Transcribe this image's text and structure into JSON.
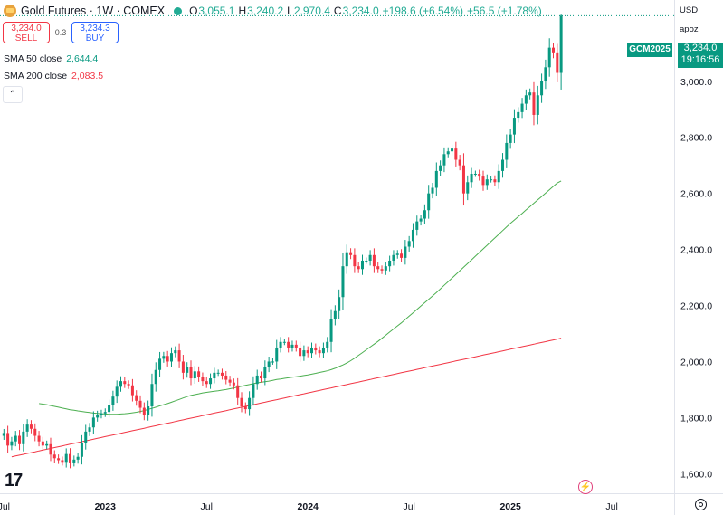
{
  "header": {
    "title": "Gold Futures · 1W · COMEX",
    "ohlc": [
      {
        "k": "O",
        "v": "3,055.1"
      },
      {
        "k": "H",
        "v": "3,240.2"
      },
      {
        "k": "L",
        "v": "2,970.4"
      },
      {
        "k": "C",
        "v": "3,234.0"
      }
    ],
    "change": "+198.6 (+6.54%)",
    "extra_change": "+56.5 (+1.78%)"
  },
  "trade": {
    "sell_price": "3,234.0",
    "sell_label": "SELL",
    "spread": "0.3",
    "buy_price": "3,234.3",
    "buy_label": "BUY"
  },
  "indicators": {
    "sma50_label": "SMA 50 close",
    "sma50_value": "2,644.4",
    "sma200_label": "SMA 200 close",
    "sma200_value": "2,083.5"
  },
  "right_panel": {
    "currency": "USD",
    "scale": "apoz",
    "symbol_badge": "GCM2025",
    "price_badge": "3,234.0",
    "countdown": "19:16:56"
  },
  "colors": {
    "up": "#089981",
    "down": "#f23645",
    "sma50": "#4caf50",
    "sma200": "#f23645",
    "last_price": "#089981"
  },
  "chart_data": {
    "type": "candlestick",
    "title": "Gold Futures · 1W · COMEX",
    "y_ticks": [
      1600,
      1800,
      2000,
      2200,
      2400,
      2600,
      2800,
      3000
    ],
    "y_tick_labels": [
      "1,600.0",
      "1,800.0",
      "2,000.0",
      "2,200.0",
      "2,400.0",
      "2,600.0",
      "2,800.0",
      "3,000.0"
    ],
    "ylim": [
      1530,
      3290
    ],
    "x_ticks": [
      {
        "label": "Jul",
        "week": 0
      },
      {
        "label": "2023",
        "week": 26
      },
      {
        "label": "Jul",
        "week": 52
      },
      {
        "label": "2024",
        "week": 78
      },
      {
        "label": "Jul",
        "week": 104
      },
      {
        "label": "2025",
        "week": 130
      },
      {
        "label": "Jul",
        "week": 156
      }
    ],
    "x_range_weeks": [
      -1,
      172
    ],
    "bold_x_labels": [
      "2023",
      "2024",
      "2025"
    ],
    "last_price": 3234.0,
    "closes": [
      1745,
      1700,
      1715,
      1735,
      1705,
      1750,
      1775,
      1760,
      1735,
      1715,
      1700,
      1705,
      1668,
      1655,
      1648,
      1642,
      1670,
      1640,
      1650,
      1660,
      1710,
      1750,
      1765,
      1800,
      1810,
      1815,
      1820,
      1845,
      1875,
      1910,
      1930,
      1920,
      1915,
      1880,
      1860,
      1835,
      1810,
      1840,
      1920,
      1970,
      2010,
      2020,
      2000,
      2030,
      2040,
      2000,
      1960,
      1980,
      1940,
      1965,
      1945,
      1930,
      1920,
      1940,
      1960,
      1960,
      1950,
      1935,
      1925,
      1915,
      1870,
      1840,
      1830,
      1870,
      1920,
      1950,
      1940,
      1980,
      2000,
      2000,
      2050,
      2070,
      2070,
      2050,
      2060,
      2050,
      2020,
      2040,
      2030,
      2050,
      2040,
      2030,
      2050,
      2070,
      2150,
      2180,
      2230,
      2340,
      2390,
      2380,
      2340,
      2330,
      2360,
      2360,
      2380,
      2340,
      2330,
      2325,
      2340,
      2360,
      2380,
      2385,
      2370,
      2410,
      2430,
      2470,
      2500,
      2510,
      2540,
      2600,
      2620,
      2680,
      2700,
      2740,
      2750,
      2760,
      2720,
      2700,
      2600,
      2640,
      2670,
      2670,
      2660,
      2630,
      2650,
      2650,
      2640,
      2680,
      2720,
      2780,
      2810,
      2870,
      2890,
      2920,
      2950,
      2960,
      2880,
      2950,
      3000,
      3050,
      3120,
      3100,
      3030,
      3234
    ],
    "sma50": [
      1850,
      1848,
      1846,
      1843,
      1840,
      1837,
      1834,
      1831,
      1828,
      1826,
      1824,
      1822,
      1820,
      1818,
      1816,
      1815,
      1814,
      1813,
      1812,
      1812,
      1812,
      1813,
      1814,
      1815,
      1817,
      1819,
      1822,
      1825,
      1829,
      1833,
      1837,
      1842,
      1846,
      1850,
      1855,
      1860,
      1865,
      1870,
      1875,
      1879,
      1882,
      1885,
      1888,
      1890,
      1892,
      1894,
      1896,
      1898,
      1900,
      1903,
      1906,
      1909,
      1912,
      1915,
      1918,
      1921,
      1924,
      1926,
      1928,
      1930,
      1933,
      1936,
      1938,
      1940,
      1942,
      1944,
      1946,
      1948,
      1950,
      1952,
      1955,
      1958,
      1961,
      1964,
      1967,
      1971,
      1976,
      1982,
      1988,
      1995,
      2003,
      2012,
      2022,
      2032,
      2042,
      2052,
      2062,
      2072,
      2083,
      2094,
      2105,
      2116,
      2127,
      2138,
      2150,
      2162,
      2174,
      2186,
      2198,
      2210,
      2222,
      2234,
      2246,
      2259,
      2272,
      2285,
      2298,
      2311,
      2324,
      2337,
      2350,
      2363,
      2376,
      2389,
      2402,
      2415,
      2428,
      2441,
      2454,
      2467,
      2480,
      2493,
      2505,
      2517,
      2529,
      2541,
      2553,
      2565,
      2577,
      2589,
      2601,
      2613,
      2625,
      2637,
      2644.4
    ],
    "sma200": [
      1660,
      1663,
      1666,
      1669,
      1672,
      1675,
      1678,
      1681,
      1684,
      1687,
      1690,
      1693,
      1696,
      1699,
      1702,
      1705,
      1708,
      1711,
      1714,
      1717,
      1720,
      1723,
      1726,
      1729,
      1732,
      1735,
      1738,
      1741,
      1744,
      1747,
      1750,
      1753,
      1756,
      1759,
      1762,
      1765,
      1768,
      1771,
      1774,
      1777,
      1780,
      1783,
      1786,
      1789,
      1792,
      1795,
      1798,
      1801,
      1804,
      1807,
      1810,
      1813,
      1816,
      1819,
      1822,
      1825,
      1828,
      1831,
      1834,
      1837,
      1840,
      1843,
      1846,
      1849,
      1852,
      1855,
      1858,
      1861,
      1864,
      1867,
      1870,
      1873,
      1876,
      1879,
      1882,
      1885,
      1888,
      1891,
      1894,
      1897,
      1900,
      1903,
      1906,
      1909,
      1912,
      1915,
      1918,
      1921,
      1924,
      1927,
      1930,
      1933,
      1936,
      1939,
      1942,
      1945,
      1948,
      1951,
      1954,
      1957,
      1960,
      1963,
      1966,
      1969,
      1972,
      1975,
      1978,
      1981,
      1984,
      1987,
      1990,
      1993,
      1996,
      1999,
      2002,
      2005,
      2008,
      2011,
      2014,
      2017,
      2020,
      2023,
      2026,
      2029,
      2032,
      2035,
      2038,
      2041,
      2044,
      2047,
      2050,
      2053,
      2056,
      2059,
      2062,
      2065,
      2068,
      2071,
      2074,
      2077,
      2080,
      2083.5
    ]
  }
}
